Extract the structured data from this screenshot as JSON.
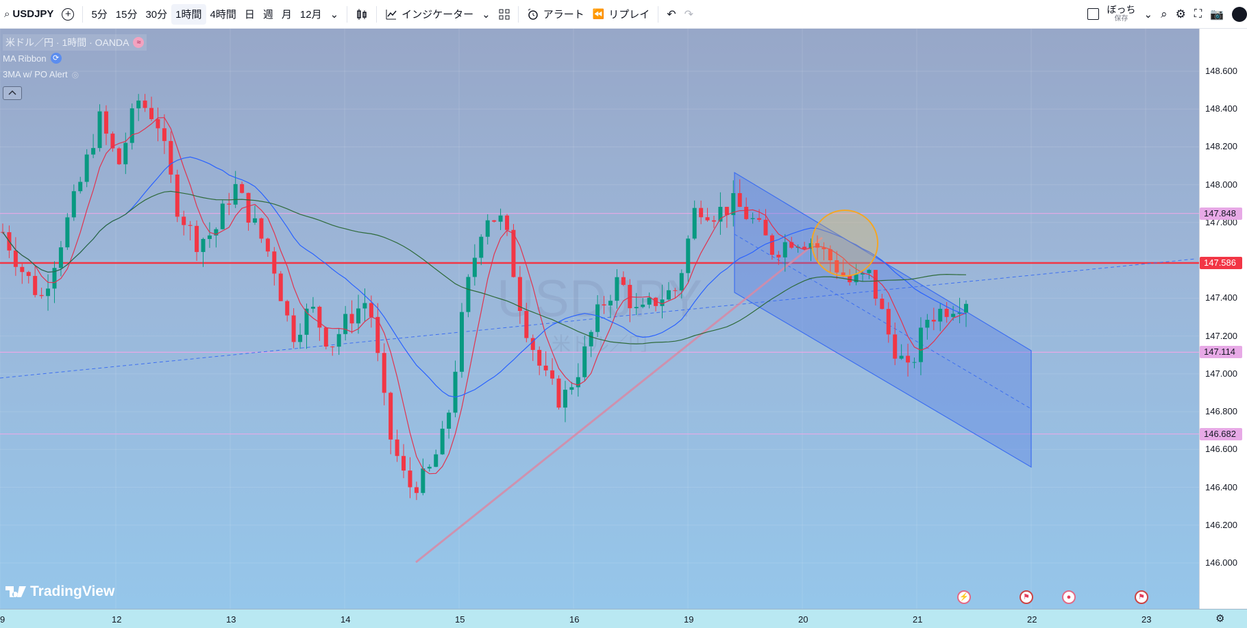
{
  "toolbar": {
    "symbol": "USDJPY",
    "intervals": [
      "5分",
      "15分",
      "30分",
      "1時間",
      "4時間",
      "日",
      "週",
      "月",
      "12月"
    ],
    "active_interval": "1時間",
    "indicators_label": "インジケーター",
    "alert_label": "アラート",
    "replay_label": "リプレイ",
    "layout_name": "ぼっち",
    "layout_status": "保存"
  },
  "legend": {
    "main": "米ドル／円 · 1時間 · OANDA",
    "indicator_1": "MA Ribbon",
    "indicator_2": "3MA w/ PO Alert"
  },
  "watermark": {
    "symbol": "USDJPY",
    "sub": "米ドル／円"
  },
  "logo": "TradingView",
  "price_axis": {
    "ticks": [
      "148.600",
      "148.400",
      "148.200",
      "148.000",
      "147.800",
      "147.400",
      "147.200",
      "147.000",
      "146.800",
      "146.600",
      "146.400",
      "146.200",
      "146.000"
    ],
    "tags": [
      {
        "label": "147.848",
        "color": "#e7a9e6"
      },
      {
        "label": "147.586",
        "color": "#f23645"
      },
      {
        "label": "147.114",
        "color": "#e7a9e6"
      },
      {
        "label": "146.682",
        "color": "#e7a9e6"
      }
    ]
  },
  "time_axis": {
    "ticks": [
      "9",
      "12",
      "13",
      "14",
      "15",
      "16",
      "19",
      "20",
      "21",
      "22",
      "23"
    ]
  },
  "chart_data": {
    "type": "candlestick",
    "instrument": "USDJPY",
    "timeframe": "1時間",
    "ylim": [
      146.0,
      148.7
    ],
    "horizontal_levels": [
      147.848,
      147.586,
      147.114,
      146.682
    ],
    "close_path": [
      147.75,
      147.55,
      147.4,
      147.7,
      148.0,
      148.35,
      148.1,
      148.45,
      148.35,
      147.9,
      147.7,
      147.75,
      148.0,
      147.8,
      147.6,
      147.2,
      147.35,
      147.15,
      147.3,
      147.4,
      146.7,
      146.4,
      146.45,
      146.7,
      147.4,
      147.85,
      147.8,
      147.3,
      147.0,
      146.85,
      147.05,
      147.35,
      147.5,
      147.3,
      147.4,
      147.45,
      147.9,
      147.85,
      147.9,
      147.8,
      147.65,
      147.72,
      147.7,
      147.6,
      147.48,
      147.52,
      147.2,
      147.0,
      147.3,
      147.35,
      147.4
    ]
  }
}
